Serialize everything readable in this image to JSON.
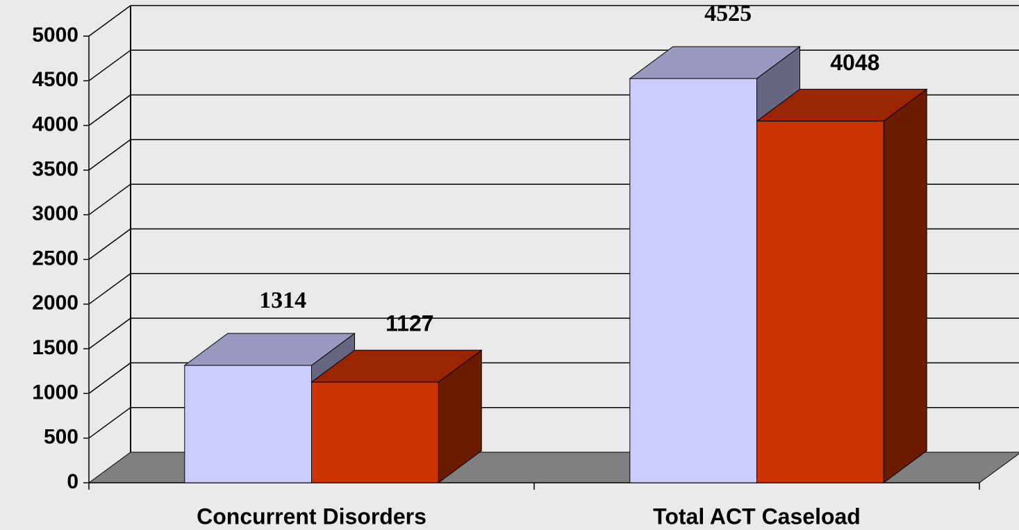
{
  "chart_data": {
    "type": "bar3d",
    "categories": [
      "Concurrent Disorders",
      "Total ACT Caseload"
    ],
    "series": [
      {
        "color": "#ccccff",
        "values": [
          1314,
          4525
        ]
      },
      {
        "color": "#cc3300",
        "values": [
          1127,
          4048
        ]
      }
    ],
    "ylim": [
      0,
      5000
    ],
    "yticks": [
      0,
      500,
      1000,
      1500,
      2000,
      2500,
      3000,
      3500,
      4000,
      4500,
      5000
    ],
    "grid": true
  }
}
